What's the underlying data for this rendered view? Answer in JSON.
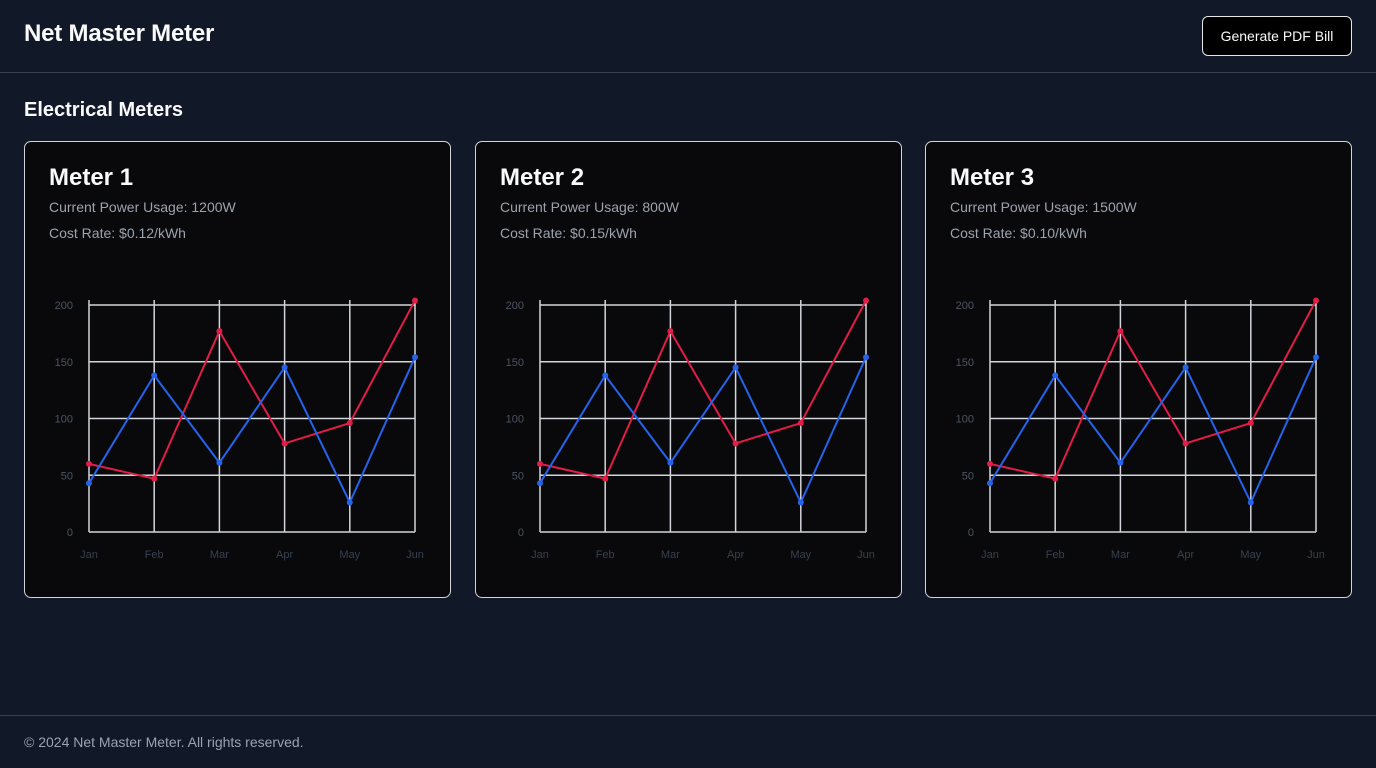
{
  "header": {
    "title": "Net Master Meter",
    "pdf_button_label": "Generate PDF Bill"
  },
  "section": {
    "title": "Electrical Meters"
  },
  "meters": [
    {
      "name": "Meter 1",
      "power_usage": "Current Power Usage: 1200W",
      "cost_rate": "Cost Rate: $0.12/kWh"
    },
    {
      "name": "Meter 2",
      "power_usage": "Current Power Usage: 800W",
      "cost_rate": "Cost Rate: $0.15/kWh"
    },
    {
      "name": "Meter 3",
      "power_usage": "Current Power Usage: 1500W",
      "cost_rate": "Cost Rate: $0.10/kWh"
    }
  ],
  "colors": {
    "background": "#111827",
    "card": "#09090b",
    "grid": "#d1d5db",
    "series_red": "#e11d48",
    "series_blue": "#2563eb"
  },
  "chart_data": [
    {
      "type": "line",
      "categories": [
        "Jan",
        "Feb",
        "Mar",
        "Apr",
        "May",
        "Jun"
      ],
      "ylim": [
        0,
        200
      ],
      "yticks": [
        0,
        50,
        100,
        150,
        200
      ],
      "grid": true,
      "series": [
        {
          "color": "#e11d48",
          "values": [
            60,
            47,
            177,
            78,
            96,
            204
          ]
        },
        {
          "color": "#2563eb",
          "values": [
            43,
            138,
            61,
            145,
            26,
            154
          ]
        }
      ]
    },
    {
      "type": "line",
      "categories": [
        "Jan",
        "Feb",
        "Mar",
        "Apr",
        "May",
        "Jun"
      ],
      "ylim": [
        0,
        200
      ],
      "yticks": [
        0,
        50,
        100,
        150,
        200
      ],
      "grid": true,
      "series": [
        {
          "color": "#e11d48",
          "values": [
            60,
            47,
            177,
            78,
            96,
            204
          ]
        },
        {
          "color": "#2563eb",
          "values": [
            43,
            138,
            61,
            145,
            26,
            154
          ]
        }
      ]
    },
    {
      "type": "line",
      "categories": [
        "Jan",
        "Feb",
        "Mar",
        "Apr",
        "May",
        "Jun"
      ],
      "ylim": [
        0,
        200
      ],
      "yticks": [
        0,
        50,
        100,
        150,
        200
      ],
      "grid": true,
      "series": [
        {
          "color": "#e11d48",
          "values": [
            60,
            47,
            177,
            78,
            96,
            204
          ]
        },
        {
          "color": "#2563eb",
          "values": [
            43,
            138,
            61,
            145,
            26,
            154
          ]
        }
      ]
    }
  ],
  "footer": {
    "copyright": "© 2024 Net Master Meter. All rights reserved."
  }
}
